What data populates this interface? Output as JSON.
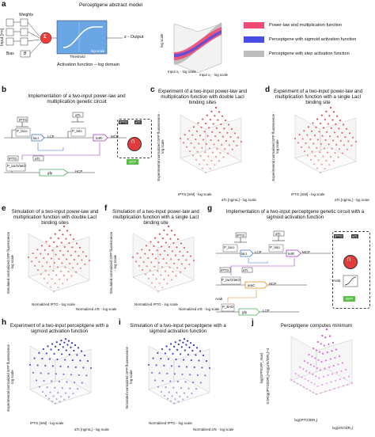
{
  "panel_a": {
    "letter": "a",
    "title": "Perceptgene abstract model",
    "input_label": "Input [i=n]",
    "weights_label": "Weights",
    "bias_label": "Bias",
    "bias_symbol": "B",
    "activation_label": "Activation function – log domain",
    "threshold_label": "Threshold",
    "log_scale_label": "log scale",
    "output_label": "z - Output",
    "sigma": "Σ",
    "y_label": "log scale",
    "x1_label": "Input x₁ - log scale",
    "x2_label": "Input x₂ - log scale",
    "legend": [
      {
        "label": "Power-law and multiplication function",
        "color": "#ee4a73"
      },
      {
        "label": "Perceptgene with sigmoid activation function",
        "color": "#4a4ae6"
      },
      {
        "label": "Perceptgene with step activation function",
        "color": "#bdbdbd"
      }
    ]
  },
  "panel_b": {
    "letter": "b",
    "title": "Implementation of a two-input power-law and multiplication genetic circuit",
    "iptg": "IPTG",
    "atc": "aTc",
    "laci": "lacI",
    "tetr": "tetR",
    "lcp": "LCP",
    "mcp": "MCP",
    "hcp": "HCP",
    "gfp": "gfp",
    "gfp_box": "GFP",
    "pi": "Π",
    "p_laco": "P_laco",
    "p_teto": "P_teto",
    "p_promoter": "P_lacO/tetO"
  },
  "panel_c": {
    "letter": "c",
    "title": "Experiment of a two-input power-law and multiplication function with double LacI binding sites",
    "zlabel": "Experimental normalized GFP fluorescence - log scale",
    "xlabel": "IPTG [mM] - log scale",
    "ylabel": "aTc [ng/mL] - log scale",
    "ticks": [
      "10¹",
      "10⁰",
      "10⁻¹",
      "10²",
      "10¹",
      "10⁰",
      "10²",
      "10±"
    ]
  },
  "panel_d": {
    "letter": "d",
    "title": "Experiment of a two-input power-law and multiplication function with a single LacI binding site",
    "zlabel": "Experimental normalized GFP fluorescence - log scale",
    "xlabel": "IPTG [mM] - log scale",
    "ylabel": "aTc [ng/mL] - log scale",
    "ticks": [
      "10¹",
      "10⁰",
      "10⁻¹",
      "10²",
      "10¹",
      "10⁰",
      "10²",
      "10±"
    ]
  },
  "panel_e": {
    "letter": "e",
    "title": "Simulation of a two-input power-law and multiplication function with double LacI binding sites",
    "zlabel": "Simulated normalized GFP fluorescence - log scale",
    "xlabel": "Normalized IPTG - log scale",
    "ylabel": "Normalized aTc - log scale",
    "ticks": [
      "10²",
      "10⁰",
      "10⁻²",
      "10¹",
      "10⁰",
      "10⁻¹",
      "10¹",
      "10⁰"
    ]
  },
  "panel_f": {
    "letter": "f",
    "title": "Simulation of a two-input power-law and multiplication function with a single LacI binding site",
    "zlabel": "Simulated normalized GFP fluorescence - log scale",
    "xlabel": "Normalized IPTG - log scale",
    "ylabel": "Normalized aTc - log scale",
    "ticks": [
      "10²",
      "10⁰",
      "10⁻²",
      "10¹",
      "10⁰",
      "10⁻¹",
      "10¹",
      "10⁰"
    ]
  },
  "panel_g": {
    "letter": "g",
    "title": "Implementation of a two-input perceptgene genetic circuit with a sigmoid activation function",
    "iptg": "IPTG",
    "atc": "aTc",
    "arab": "Arab",
    "laci": "lacI",
    "tetr": "tetR",
    "lcp": "LCP",
    "mcp": "MCP",
    "hcp": "HCP",
    "arac": "araC",
    "gfp": "gfp",
    "gfp_box": "GFP",
    "pi": "Π",
    "p_laco": "P_laco",
    "p_teto": "P_teto",
    "p_promoter": "P_lacO/tetO",
    "p_bad": "P_BAD"
  },
  "panel_h": {
    "letter": "h",
    "title": "Experiment of a two-input perceptgene with a sigmoid activation function",
    "zlabel": "Experimental normalized GFP fluorescence - log scale",
    "xlabel": "IPTG [mM] - log scale",
    "ylabel": "aTc [ng/mL] - log scale",
    "ticks": [
      "10¹",
      "10⁰",
      "10⁻¹",
      "10²",
      "10¹",
      "10⁰",
      "10²",
      "10±"
    ]
  },
  "panel_i": {
    "letter": "i",
    "title": "Simulation of a two-input perceptgene with a sigmoid activation function",
    "zlabel": "Simulated normalized GFP fluorescence - log scale",
    "xlabel": "Normalized IPTG - log scale",
    "ylabel": "Normalized aTc - log scale",
    "ticks": [
      "10¹",
      "10⁰",
      "10⁻¹",
      "10¹",
      "10⁰",
      "10⁻¹",
      "10¹",
      "10⁰"
    ]
  },
  "panel_j": {
    "letter": "j",
    "title": "Perceptgene computes minimum",
    "zlabel": "log(GFP/GFP_max)",
    "zlabel2": "0.5•log(IPTG/IDR₁)+log(aTc/IDR₂)+4",
    "xlabel": "log(IPTG/IDR₁)",
    "ylabel": "log(aTc/IDR₂)"
  },
  "colors": {
    "red": "#e23b3b",
    "blue": "#2d2dc8",
    "magenta": "#d23bd2",
    "grid": "#aaaaaa"
  },
  "chart_data": [
    {
      "type": "scatter",
      "panel": "c",
      "title": "Experiment of a two-input power-law and multiplication function with double LacI binding sites",
      "series": [
        {
          "color": "#e23b3b"
        }
      ],
      "surface": "power-law"
    },
    {
      "type": "scatter",
      "panel": "d",
      "title": "Experiment of a two-input power-law and multiplication function with a single LacI binding site",
      "series": [
        {
          "color": "#e23b3b"
        }
      ],
      "surface": "power-law"
    },
    {
      "type": "scatter",
      "panel": "e",
      "title": "Simulation of a two-input power-law and multiplication function with double LacI binding sites",
      "series": [
        {
          "color": "#e23b3b"
        }
      ],
      "surface": "power-law"
    },
    {
      "type": "scatter",
      "panel": "f",
      "title": "Simulation of a two-input power-law and multiplication function with a single LacI binding site",
      "series": [
        {
          "color": "#e23b3b"
        }
      ],
      "surface": "power-law"
    },
    {
      "type": "scatter",
      "panel": "h",
      "title": "Experiment of a two-input perceptgene with a sigmoid activation function",
      "series": [
        {
          "color": "#2d2dc8"
        }
      ],
      "surface": "sigmoid"
    },
    {
      "type": "scatter",
      "panel": "i",
      "title": "Simulation of a two-input perceptgene with a sigmoid activation function",
      "series": [
        {
          "color": "#2d2dc8"
        }
      ],
      "surface": "sigmoid"
    },
    {
      "type": "scatter",
      "panel": "j",
      "title": "Perceptgene computes minimum",
      "series": [
        {
          "color": "#d23bd2"
        }
      ],
      "surface": "minimum"
    }
  ]
}
